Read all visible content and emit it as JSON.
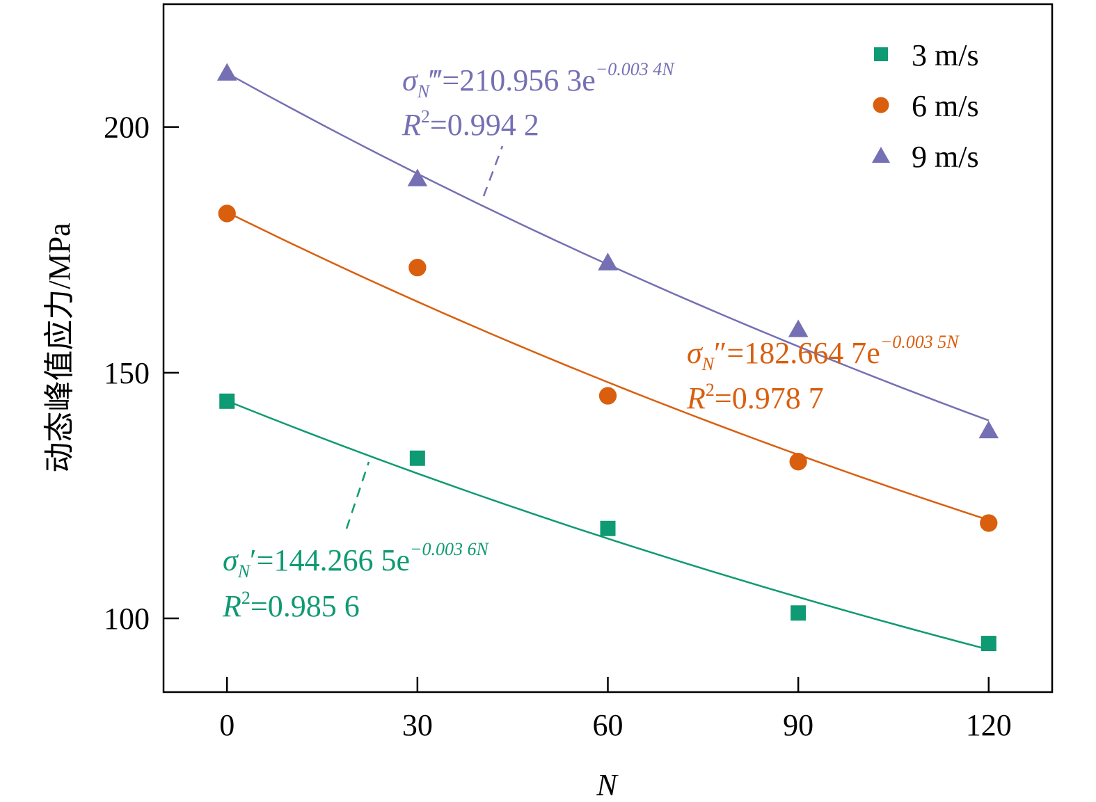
{
  "chart_data": {
    "type": "scatter",
    "title": "",
    "xlabel": "N",
    "ylabel": "动态峰值应力/MPa",
    "xlim": [
      -10,
      130
    ],
    "ylim": [
      85,
      225
    ],
    "xticks": [
      0,
      30,
      60,
      90,
      120
    ],
    "yticks": [
      100,
      150,
      200
    ],
    "grid": false,
    "legend_position": "top-right",
    "x": [
      0,
      30,
      60,
      90,
      120
    ],
    "series": [
      {
        "name": "3 m/s",
        "marker": "square",
        "color": "#0e9a72",
        "values": [
          144.2,
          132.6,
          118.3,
          101.1,
          94.9
        ],
        "fit": {
          "a": 144.2665,
          "b": -0.0036
        },
        "annotation": {
          "primes": "′",
          "sub": "N",
          "equation": "=144.266 5e",
          "exponent": "−0.003 6N",
          "r2_prefix": "R",
          "r2_power": "2",
          "r2_value": "=0.985 6"
        }
      },
      {
        "name": "6 m/s",
        "marker": "circle",
        "color": "#d95f0e",
        "values": [
          182.4,
          171.4,
          145.3,
          131.9,
          119.4
        ],
        "fit": {
          "a": 182.6647,
          "b": -0.0035
        },
        "annotation": {
          "primes": "″",
          "sub": "N",
          "equation": "=182.664 7e",
          "exponent": "−0.003 5N",
          "r2_prefix": "R",
          "r2_power": "2",
          "r2_value": "=0.978 7"
        }
      },
      {
        "name": "9 m/s",
        "marker": "triangle",
        "color": "#7570b3",
        "values": [
          211.0,
          189.5,
          172.4,
          158.8,
          138.2
        ],
        "fit": {
          "a": 210.9563,
          "b": -0.0034
        },
        "annotation": {
          "primes": "‴",
          "sub": "N",
          "equation": "=210.956 3e",
          "exponent": "−0.003 4N",
          "r2_prefix": "R",
          "r2_power": "2",
          "r2_value": "=0.994 2"
        }
      }
    ],
    "sigma": "σ"
  }
}
